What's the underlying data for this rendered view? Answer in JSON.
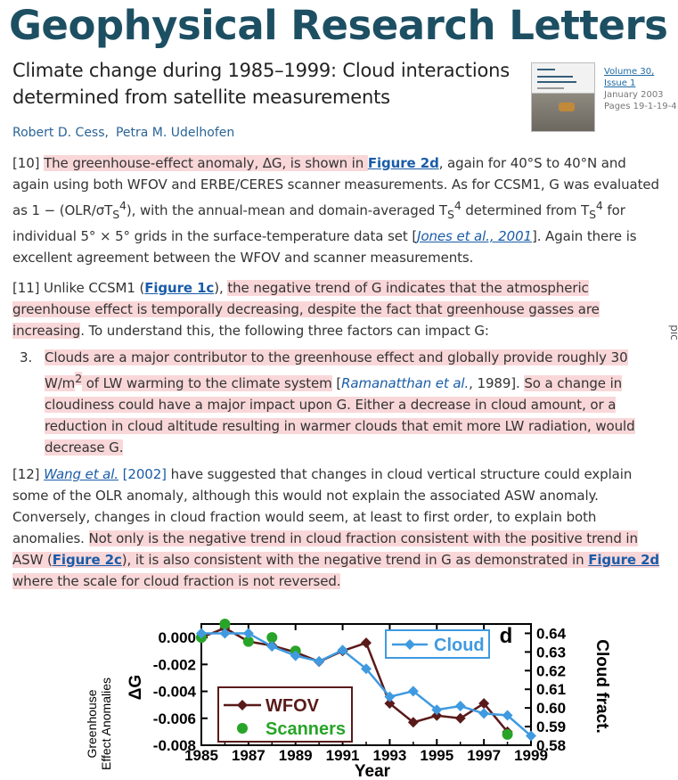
{
  "journal": "Geophysical Research Letters",
  "article": {
    "title": "Climate change during 1985–1999: Cloud interactions determined from satellite measurements",
    "volume_link": "Volume 30, Issue 1",
    "date": "January 2003",
    "pages": "Pages 19-1-19-4",
    "cover": {
      "l1": "AGU",
      "l2": "Geophysical",
      "l3": "Research Letters"
    },
    "authors": [
      "Robert D. Cess,",
      "Petra M. Udelhofen"
    ]
  },
  "side_fragment": "pic",
  "p10": {
    "num": "[10] ",
    "hl": "The greenhouse-effect anomaly, ΔG, is shown in ",
    "link": "Figure 2d",
    "t1": ", again for 40°S to 40°N and again using both WFOV and ERBE/CERES scanner measurements. As for CCSM1, G was evaluated as 1 − (OLR/σT",
    "sub1": "S",
    "sup1": "4",
    "t2": "), with the annual-mean and domain-averaged T",
    "sub2": "S",
    "sup2": "4",
    "t3": " determined from T",
    "sub3": "S",
    "sup3": "4",
    "t4": " for individual 5° × 5° grids in the surface-temperature data set [",
    "ref": "Jones et al., 2001",
    "t5": "]. Again there is excellent agreement between the WFOV and scanner measurements."
  },
  "p11": {
    "num": "[11] Unlike CCSM1 (",
    "link": "Figure 1c",
    "t1": "), ",
    "hl": "the negative trend of G indicates that the atmospheric greenhouse effect is temporally decreasing, despite the fact that greenhouse gasses are increasing",
    "t2": ". To understand this, the following three factors can impact G:"
  },
  "item3": {
    "num": "3.",
    "hl1": "Clouds are a major contributor to the greenhouse effect and globally provide roughly 30 W/m",
    "sup": "2",
    "hl2": " of LW warming to the climate system",
    "t1": " [",
    "ref": "Ramanatthan et al.",
    "t2": ", 1989]. ",
    "hl3": "So a change in cloudiness could have a major impact upon G. Either a decrease in cloud amount, or a reduction in cloud altitude resulting in warmer clouds that emit more LW radiation, would decrease G."
  },
  "p12": {
    "num": "[12] ",
    "ref": "Wang et al.",
    "ref_year": " [2002]",
    "t1": " have suggested that changes in cloud vertical structure could explain some of the OLR anomaly, although this would not explain the associated ASW anomaly. Conversely, changes in cloud fraction would seem, at least to first order, to explain both anomalies. ",
    "hl1": "Not only is the negative trend in cloud fraction consistent with the positive trend in ASW (",
    "link1": "Figure 2c",
    "hl2": "), it is also consistent with the negative trend in G as demonstrated in ",
    "link2": "Figure 2d",
    "hl3": " where the scale for cloud fraction is not reversed."
  },
  "chart_data": {
    "type": "line",
    "panel_label": "d",
    "xlabel": "Year",
    "ylabel_left": "ΔG",
    "ylabel_left_outer": [
      "Greenhouse",
      "Effect Anomalies"
    ],
    "ylabel_right": "Cloud fract.",
    "xlim": [
      1985,
      1999
    ],
    "ylim_left": [
      -0.008,
      0.001
    ],
    "ylim_right": [
      0.58,
      0.645
    ],
    "xticks": [
      "1985",
      "1987",
      "1989",
      "1991",
      "1993",
      "1995",
      "1997",
      "1999"
    ],
    "yticks_left": [
      "0.000",
      "-0.002",
      "-0.004",
      "-0.006",
      "-0.008"
    ],
    "yticks_right": [
      "0.64",
      "0.63",
      "0.62",
      "0.61",
      "0.60",
      "0.59",
      "0.58"
    ],
    "grid": false,
    "series": [
      {
        "name": "WFOV",
        "axis": "left",
        "color": "#5a1a1a",
        "marker": "diamond",
        "x": [
          1985,
          1986,
          1987,
          1988,
          1989,
          1990,
          1991,
          1992,
          1993,
          1994,
          1995,
          1996,
          1997,
          1998
        ],
        "values": [
          0.0,
          0.0007,
          -0.0003,
          -0.0006,
          -0.0011,
          -0.0018,
          -0.001,
          -0.0004,
          -0.0049,
          -0.0063,
          -0.0058,
          -0.006,
          -0.0049,
          -0.007
        ]
      },
      {
        "name": "Scanners",
        "axis": "left",
        "color": "#28a428",
        "marker": "circle",
        "x": [
          1985,
          1986,
          1987,
          1988,
          1989,
          1998
        ],
        "values": [
          0.0,
          0.001,
          -0.0003,
          0.0,
          -0.001,
          -0.0072
        ]
      },
      {
        "name": "Cloud",
        "axis": "right",
        "color": "#3f9ae0",
        "marker": "diamond",
        "x": [
          1985,
          1986,
          1987,
          1988,
          1989,
          1990,
          1991,
          1992,
          1993,
          1994,
          1995,
          1996,
          1997,
          1998,
          1999
        ],
        "values": [
          0.64,
          0.64,
          0.64,
          0.633,
          0.628,
          0.625,
          0.631,
          0.621,
          0.606,
          0.609,
          0.599,
          0.601,
          0.597,
          0.596,
          0.585
        ]
      }
    ]
  }
}
